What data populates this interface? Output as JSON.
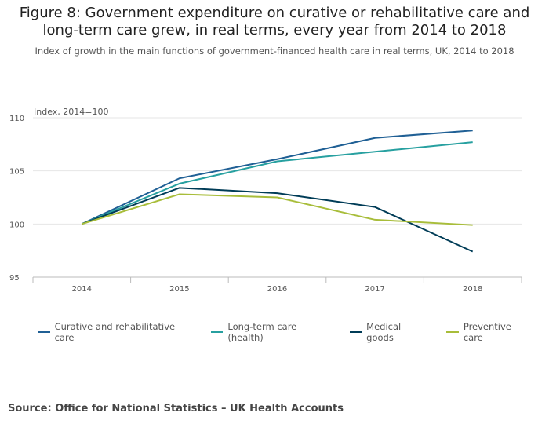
{
  "title_line1": "Figure 8: Government expenditure on curative or rehabilitative care and",
  "title_line2": "long-term care grew, in real terms, every year from 2014 to 2018",
  "subtitle": "Index of growth in the main functions of government-financed health care in real terms, UK, 2014 to 2018",
  "source": "Source: Office for National Statistics – UK Health Accounts",
  "chart_data": {
    "type": "line",
    "ylabel": "Index, 2014=100",
    "ylim": [
      95,
      110
    ],
    "yticks": [
      95,
      100,
      105,
      110
    ],
    "categories": [
      "2014",
      "2015",
      "2016",
      "2017",
      "2018"
    ],
    "grid": true,
    "legend_position": "bottom",
    "series": [
      {
        "name": "Curative and rehabilitative care",
        "color": "#206095",
        "values": [
          100,
          104.3,
          106.1,
          108.1,
          108.8
        ]
      },
      {
        "name": "Long-term care (health)",
        "color": "#27a0a0",
        "values": [
          100,
          103.8,
          105.9,
          106.8,
          107.7
        ]
      },
      {
        "name": "Medical goods",
        "color": "#003c57",
        "values": [
          100,
          103.4,
          102.9,
          101.6,
          97.4
        ]
      },
      {
        "name": "Preventive care",
        "color": "#a8bd3a",
        "values": [
          100,
          102.8,
          102.5,
          100.4,
          99.9
        ]
      }
    ]
  }
}
